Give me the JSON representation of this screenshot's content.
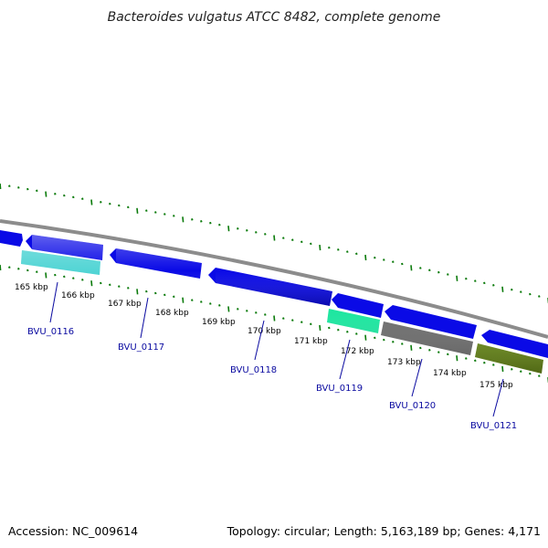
{
  "title": "Bacteroides vulgatus ATCC 8482, complete genome",
  "footer": {
    "accession": "Accession: NC_009614",
    "topology": "Topology: circular; Length: 5,163,189 bp; Genes: 4,171"
  },
  "colors": {
    "backbone": "#8c8c8c",
    "tick": "#0a7a0a",
    "cds_forward": "#0a0ae6",
    "gene_label": "#0a0aa0",
    "cyan": "#1fc8c8",
    "spring_green": "#1ee6a0",
    "gray": "#6e6e6e",
    "olive": "#6a8a1a"
  },
  "kbp_labels": [
    {
      "text": "165 kbp",
      "kbp": 165
    },
    {
      "text": "166 kbp",
      "kbp": 166
    },
    {
      "text": "167 kbp",
      "kbp": 167
    },
    {
      "text": "168 kbp",
      "kbp": 168
    },
    {
      "text": "169 kbp",
      "kbp": 169
    },
    {
      "text": "170 kbp",
      "kbp": 170
    },
    {
      "text": "171 kbp",
      "kbp": 171
    },
    {
      "text": "172 kbp",
      "kbp": 172
    },
    {
      "text": "173 kbp",
      "kbp": 173
    },
    {
      "text": "174 kbp",
      "kbp": 174
    },
    {
      "text": "175 kbp",
      "kbp": 175
    }
  ],
  "genes": [
    {
      "label": "BVU_0116"
    },
    {
      "label": "BVU_0117"
    },
    {
      "label": "BVU_0118"
    },
    {
      "label": "BVU_0119"
    },
    {
      "label": "BVU_0120"
    },
    {
      "label": "BVU_0121"
    }
  ]
}
